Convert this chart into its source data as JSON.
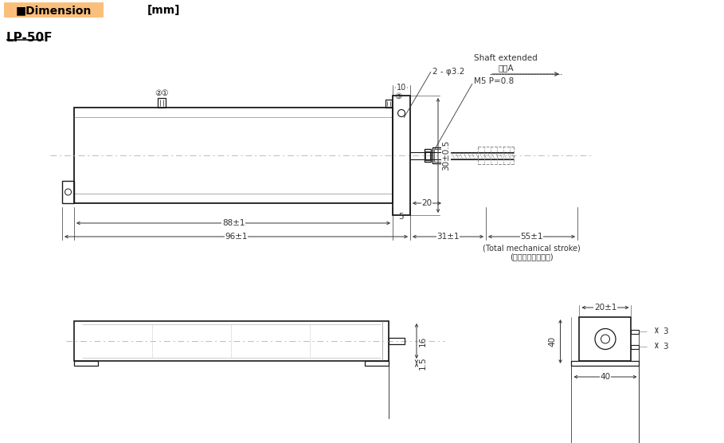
{
  "title": "LP-50F",
  "header_text": "■Dimension",
  "unit_text": "[mm]",
  "header_bg": "#F5A623",
  "header_bg2": "#FBBF7C",
  "bg_color": "#FFFFFF",
  "line_color": "#1a1a1a",
  "dim_color": "#333333",
  "light_line_color": "#BBBBBB",
  "annotations": {
    "shaft_extended": "Shaft extended",
    "houkou_a": "方向A",
    "label_21": "②①",
    "label_3": "③",
    "hole_label": "2 - φ3.2",
    "m5_label": "M5 P=0.8",
    "dim_30": "30±0.5",
    "dim_20": "20",
    "dim_5": "5",
    "dim_88": "88±1",
    "dim_96": "96±1",
    "dim_31": "31±1",
    "dim_55": "55±1",
    "dim_total": "(Total mechanical stroke)",
    "dim_total_jp": "(機械的ストローク)",
    "dim_10": "10",
    "dim_20b": "20±1",
    "dim_16": "16",
    "dim_15": "1.5",
    "dim_40": "40",
    "dim_3a": "3",
    "dim_3b": "3"
  }
}
